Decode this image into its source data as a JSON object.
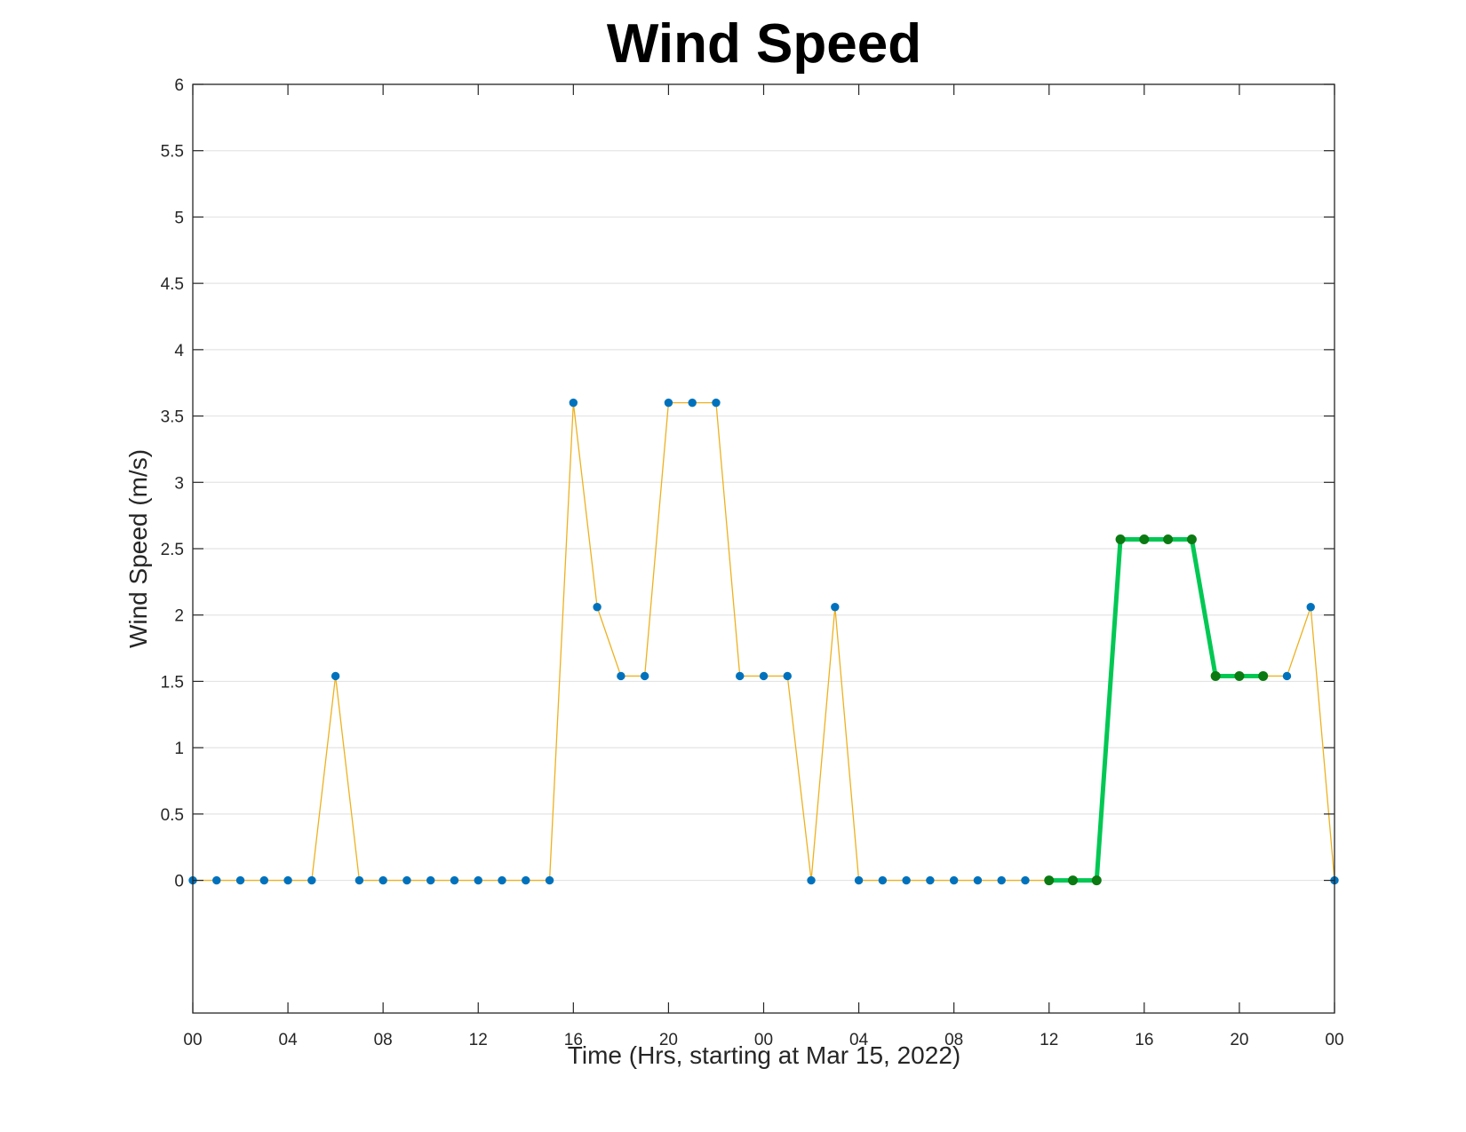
{
  "chart_data": {
    "type": "line",
    "title": "Wind Speed",
    "xlabel": "Time (Hrs, starting at Mar 15, 2022)",
    "ylabel": "Wind Speed (m/s)",
    "xlim": [
      0,
      48
    ],
    "ylim": [
      -1,
      6
    ],
    "xticks": [
      0,
      4,
      8,
      12,
      16,
      20,
      24,
      28,
      32,
      36,
      40,
      44,
      48
    ],
    "xtick_labels": [
      "00",
      "04",
      "08",
      "12",
      "16",
      "20",
      "00",
      "04",
      "08",
      "12",
      "16",
      "20",
      "00"
    ],
    "yticks": [
      0,
      0.5,
      1,
      1.5,
      2,
      2.5,
      3,
      3.5,
      4,
      4.5,
      5,
      5.5,
      6
    ],
    "ytick_labels": [
      "0",
      "0.5",
      "1",
      "1.5",
      "2",
      "2.5",
      "3",
      "3.5",
      "4",
      "4.5",
      "5",
      "5.5",
      "6"
    ],
    "grid": "horizontal",
    "series": [
      {
        "role": "full",
        "color": "#EDB120",
        "marker_color": "#0072BD",
        "x": [
          0,
          1,
          2,
          3,
          4,
          5,
          6,
          7,
          8,
          9,
          10,
          11,
          12,
          13,
          14,
          15,
          16,
          17,
          18,
          19,
          20,
          21,
          22,
          23,
          24,
          25,
          26,
          27,
          28,
          29,
          30,
          31,
          32,
          33,
          34,
          35,
          36,
          37,
          38,
          39,
          40,
          41,
          42,
          43,
          44,
          45,
          46,
          47,
          48
        ],
        "values": [
          0,
          0,
          0,
          0,
          0,
          0,
          1.54,
          0,
          0,
          0,
          0,
          0,
          0,
          0,
          0,
          0,
          3.6,
          2.06,
          1.54,
          1.54,
          3.6,
          3.6,
          3.6,
          1.54,
          1.54,
          1.54,
          0,
          2.06,
          0,
          0,
          0,
          0,
          0,
          0,
          0,
          0,
          0,
          0,
          0,
          2.57,
          2.57,
          2.57,
          2.57,
          1.54,
          1.54,
          1.54,
          1.54,
          2.06,
          0
        ]
      },
      {
        "role": "highlight",
        "color": "#00C853",
        "marker_color": "#0B7A12",
        "x": [
          36,
          37,
          38,
          39,
          40,
          41,
          42,
          43,
          44,
          45
        ],
        "values": [
          0,
          0,
          0,
          2.57,
          2.57,
          2.57,
          2.57,
          1.54,
          1.54,
          1.54
        ]
      }
    ]
  }
}
